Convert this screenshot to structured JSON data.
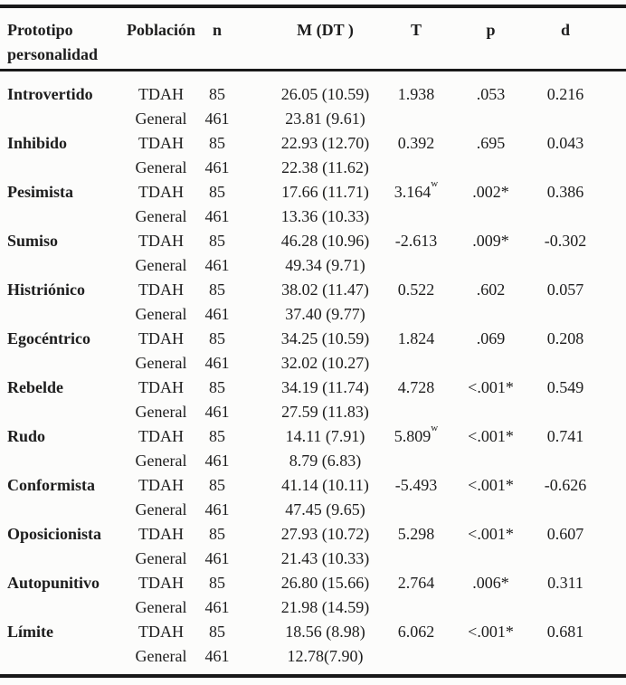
{
  "table": {
    "headers": {
      "prototype": "Prototipo personalidad",
      "population": "Población",
      "n": "n",
      "m": "M (DT )",
      "t": "T",
      "p": "p",
      "d": "d"
    },
    "rows": [
      {
        "prototype": "Introvertido",
        "tdah": {
          "label": "TDAH",
          "n": "85",
          "m": "26.05 (10.59)"
        },
        "general": {
          "label": "General",
          "n": "461",
          "m": "23.81 (9.61)"
        },
        "t": "1.938",
        "t_sup": "",
        "p": ".053",
        "d": "0.216"
      },
      {
        "prototype": "Inhibido",
        "tdah": {
          "label": "TDAH",
          "n": "85",
          "m": "22.93 (12.70)"
        },
        "general": {
          "label": "General",
          "n": "461",
          "m": "22.38 (11.62)"
        },
        "t": "0.392",
        "t_sup": "",
        "p": ".695",
        "d": "0.043"
      },
      {
        "prototype": "Pesimista",
        "tdah": {
          "label": "TDAH",
          "n": "85",
          "m": "17.66 (11.71)"
        },
        "general": {
          "label": "General",
          "n": "461",
          "m": "13.36 (10.33)"
        },
        "t": "3.164",
        "t_sup": "w",
        "p": ".002*",
        "d": "0.386"
      },
      {
        "prototype": "Sumiso",
        "tdah": {
          "label": "TDAH",
          "n": "85",
          "m": "46.28 (10.96)"
        },
        "general": {
          "label": "General",
          "n": "461",
          "m": "49.34 (9.71)"
        },
        "t": "-2.613",
        "t_sup": "",
        "p": ".009*",
        "d": "-0.302"
      },
      {
        "prototype": "Histriónico",
        "tdah": {
          "label": "TDAH",
          "n": "85",
          "m": "38.02 (11.47)"
        },
        "general": {
          "label": "General",
          "n": "461",
          "m": "37.40 (9.77)"
        },
        "t": "0.522",
        "t_sup": "",
        "p": ".602",
        "d": "0.057"
      },
      {
        "prototype": "Egocéntrico",
        "tdah": {
          "label": "TDAH",
          "n": "85",
          "m": "34.25 (10.59)"
        },
        "general": {
          "label": "General",
          "n": "461",
          "m": "32.02 (10.27)"
        },
        "t": "1.824",
        "t_sup": "",
        "p": ".069",
        "d": "0.208"
      },
      {
        "prototype": "Rebelde",
        "tdah": {
          "label": "TDAH",
          "n": "85",
          "m": "34.19 (11.74)"
        },
        "general": {
          "label": "General",
          "n": "461",
          "m": "27.59 (11.83)"
        },
        "t": "4.728",
        "t_sup": "",
        "p": "<.001*",
        "d": "0.549"
      },
      {
        "prototype": "Rudo",
        "tdah": {
          "label": "TDAH",
          "n": "85",
          "m": "14.11 (7.91)"
        },
        "general": {
          "label": "General",
          "n": "461",
          "m": "8.79 (6.83)"
        },
        "t": "5.809",
        "t_sup": "w",
        "p": "<.001*",
        "d": "0.741"
      },
      {
        "prototype": "Conformista",
        "tdah": {
          "label": "TDAH",
          "n": "85",
          "m": "41.14 (10.11)"
        },
        "general": {
          "label": "General",
          "n": "461",
          "m": "47.45 (9.65)"
        },
        "t": "-5.493",
        "t_sup": "",
        "p": "<.001*",
        "d": "-0.626"
      },
      {
        "prototype": "Oposicionista",
        "tdah": {
          "label": "TDAH",
          "n": "85",
          "m": "27.93 (10.72)"
        },
        "general": {
          "label": "General",
          "n": "461",
          "m": "21.43 (10.33)"
        },
        "t": "5.298",
        "t_sup": "",
        "p": "<.001*",
        "d": "0.607"
      },
      {
        "prototype": "Autopunitivo",
        "tdah": {
          "label": "TDAH",
          "n": "85",
          "m": "26.80 (15.66)"
        },
        "general": {
          "label": "General",
          "n": "461",
          "m": "21.98 (14.59)"
        },
        "t": "2.764",
        "t_sup": "",
        "p": ".006*",
        "d": "0.311"
      },
      {
        "prototype": "Límite",
        "tdah": {
          "label": "TDAH",
          "n": "85",
          "m": "18.56 (8.98)"
        },
        "general": {
          "label": "General",
          "n": "461",
          "m": "12.78(7.90)"
        },
        "t": "6.062",
        "t_sup": "",
        "p": "<.001*",
        "d": "0.681"
      }
    ],
    "colors": {
      "text": "#1d1d1d",
      "rule": "#191919",
      "background": "#fcfcfb"
    }
  }
}
